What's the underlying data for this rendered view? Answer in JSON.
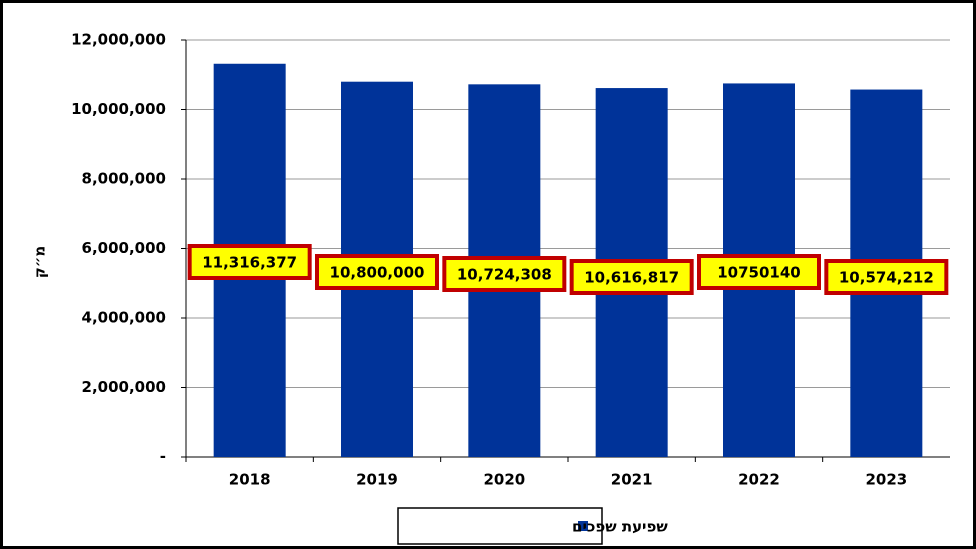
{
  "chart_data": {
    "type": "bar",
    "y_label": "מ״ק",
    "categories": [
      "2018",
      "2019",
      "2020",
      "2021",
      "2022",
      "2023"
    ],
    "series": [
      {
        "name": "שפיעת שפכים",
        "color": "#003399",
        "values": [
          11316377,
          10800000,
          10724308,
          10616817,
          10750140,
          10574212
        ],
        "value_labels": [
          "11,316,377",
          "10,800,000",
          "10,724,308",
          "10,616,817",
          "10750140",
          "10,574,212"
        ]
      }
    ],
    "ylim": [
      0,
      12000000
    ],
    "yticks": [
      {
        "value": 0,
        "label": "-"
      },
      {
        "value": 2000000,
        "label": "2,000,000"
      },
      {
        "value": 4000000,
        "label": "4,000,000"
      },
      {
        "value": 6000000,
        "label": "6,000,000"
      },
      {
        "value": 8000000,
        "label": "8,000,000"
      },
      {
        "value": 10000000,
        "label": "10,000,000"
      },
      {
        "value": 12000000,
        "label": "12,000,000"
      }
    ],
    "grid": true,
    "legend": "bottom"
  }
}
